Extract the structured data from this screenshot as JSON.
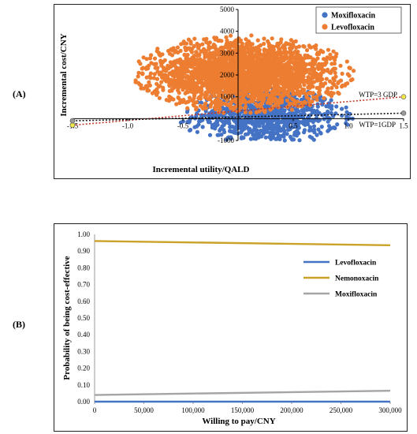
{
  "panels": [
    {
      "label": "(A)"
    },
    {
      "label": "(B)"
    }
  ],
  "chart_data": [
    {
      "type": "scatter",
      "xlabel": "Incremental utility/QALD",
      "ylabel": "Incremental cost/CNY",
      "xlim": [
        -1.5,
        1.5
      ],
      "ylim": [
        -1000,
        5000
      ],
      "x_ticks": [
        -1.5,
        -1.0,
        -0.5,
        0.5,
        1.0,
        1.5
      ],
      "x_tick_labels": [
        "-1.5",
        "-1.0",
        "-0.5",
        "0.5",
        "1.0",
        "1.5"
      ],
      "y_ticks": [
        -1000,
        1000,
        2000,
        3000,
        4000,
        5000
      ],
      "y_tick_labels": [
        "-1000",
        "1000",
        "2000",
        "3000",
        "4000",
        "5000"
      ],
      "legend_position": "top-right",
      "series": [
        {
          "name": "Moxifloxacin",
          "color": "#4472c4",
          "cloud": {
            "x_mean": 0.25,
            "x_sd": 0.33,
            "y_mean": 120,
            "y_sd": 620,
            "count": 900
          }
        },
        {
          "name": "Levofloxacin",
          "color": "#ed7d31",
          "cloud": {
            "x_mean": 0.05,
            "x_sd": 0.42,
            "y_mean": 2050,
            "y_sd": 760,
            "count": 2600
          }
        }
      ],
      "wtp_lines": [
        {
          "label": "WTP=3 GDP",
          "color": "#c0392b",
          "x": [
            -1.5,
            1.5
          ],
          "y": [
            -300,
            1000
          ],
          "endpoint_color": "#f1e64b"
        },
        {
          "label": "WTP=1GDP",
          "color": "#111111",
          "x": [
            -1.5,
            1.5
          ],
          "y": [
            -100,
            250
          ],
          "endpoint_color": "#999999"
        }
      ]
    },
    {
      "type": "line",
      "xlabel": "Willing to pay/CNY",
      "ylabel": "Probability of being cost-effective",
      "xlim": [
        0,
        300000
      ],
      "ylim": [
        0,
        1
      ],
      "x_ticks": [
        0,
        50000,
        100000,
        150000,
        200000,
        250000,
        300000
      ],
      "x_tick_labels": [
        "0",
        "50,000",
        "100,000",
        "150,000",
        "200,000",
        "250,000",
        "300,000"
      ],
      "y_ticks": [
        0,
        0.1,
        0.2,
        0.3,
        0.4,
        0.5,
        0.6,
        0.7,
        0.8,
        0.9,
        1.0
      ],
      "y_tick_labels": [
        "0.00",
        "0.10",
        "0.20",
        "0.30",
        "0.40",
        "0.50",
        "0.60",
        "0.70",
        "0.80",
        "0.90",
        "1.00"
      ],
      "legend_position": "right",
      "x": [
        0,
        300000
      ],
      "series": [
        {
          "name": "Levofloxacin",
          "color": "#4472c4",
          "values": [
            0.0,
            0.0
          ]
        },
        {
          "name": "Nemonoxacin",
          "color": "#c9a227",
          "values": [
            0.96,
            0.935
          ]
        },
        {
          "name": "Moxifloxacin",
          "color": "#a5a5a5",
          "values": [
            0.04,
            0.065
          ]
        }
      ]
    }
  ]
}
